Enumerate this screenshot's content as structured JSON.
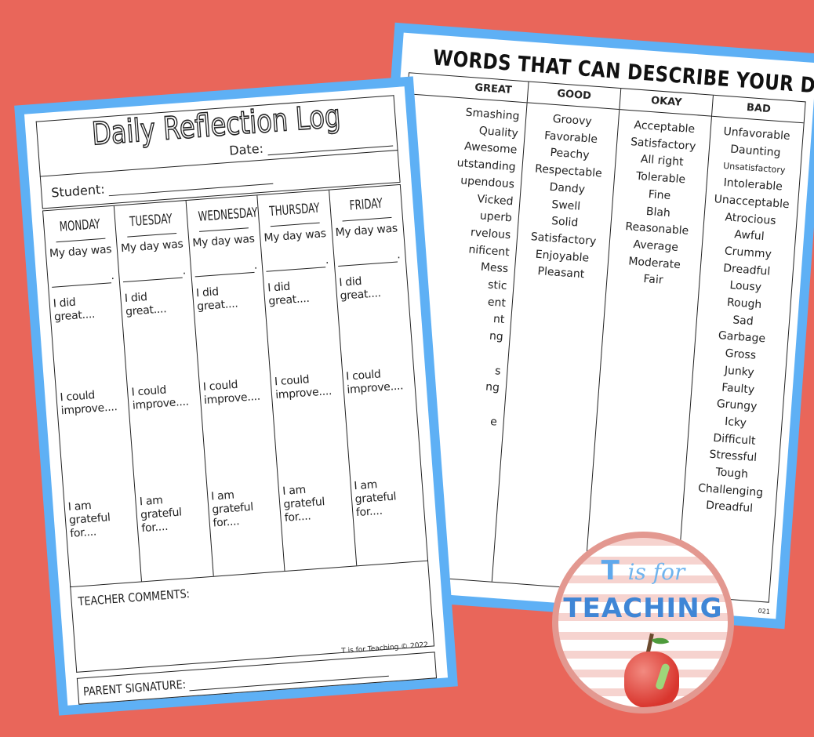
{
  "colors": {
    "background": "#E9665A",
    "sheet_border": "#5EB0F5",
    "logo_ring": "#E39890",
    "logo_blue": "#3F86D6"
  },
  "words_sheet": {
    "title": "WORDS THAT CAN DESCRIBE YOUR DAY",
    "columns": [
      {
        "header": "GREAT",
        "words": [
          "Smashing",
          "Quality",
          "Awesome",
          "utstanding",
          "upendous",
          "Vicked",
          "uperb",
          "rvelous",
          "nificent",
          "Mess",
          "stic",
          "ent",
          "nt",
          "ng",
          "",
          "s",
          "ng",
          "",
          "e"
        ]
      },
      {
        "header": "GOOD",
        "words": [
          "Groovy",
          "Favorable",
          "Peachy",
          "Respectable",
          "Dandy",
          "Swell",
          "Solid",
          "Satisfactory",
          "Enjoyable",
          "Pleasant"
        ]
      },
      {
        "header": "OKAY",
        "words": [
          "Acceptable",
          "Satisfactory",
          "All right",
          "Tolerable",
          "Fine",
          "Blah",
          "Reasonable",
          "Average",
          "Moderate",
          "Fair"
        ]
      },
      {
        "header": "BAD",
        "words": [
          "Unfavorable",
          "Daunting",
          "Unsatisfactory",
          "Intolerable",
          "Unacceptable",
          "Atrocious",
          "Awful",
          "Crummy",
          "Dreadful",
          "Lousy",
          "Rough",
          "Sad",
          "Garbage",
          "Gross",
          "Junky",
          "Faulty",
          "Grungy",
          "Icky",
          "Difficult",
          "Stressful",
          "Tough",
          "Challenging",
          "Dreadful"
        ]
      }
    ],
    "copyright": "021"
  },
  "log_sheet": {
    "title": "Daily Reflection Log",
    "student_label": "Student:",
    "date_label": "Date:",
    "days": [
      "MONDAY",
      "TUESDAY",
      "WEDNESDAY",
      "THURSDAY",
      "FRIDAY"
    ],
    "prompts": {
      "day_was": "My day was",
      "did_great": "I did great....",
      "could_improve": "I could improve....",
      "grateful": "I am grateful for...."
    },
    "teacher_comments": "TEACHER COMMENTS:",
    "parent_signature": "PARENT SIGNATURE:",
    "copyright": "T is for Teaching © 2022"
  },
  "logo": {
    "line1_bold": "T",
    "line1_script": "is for",
    "line2": "TEACHING"
  }
}
